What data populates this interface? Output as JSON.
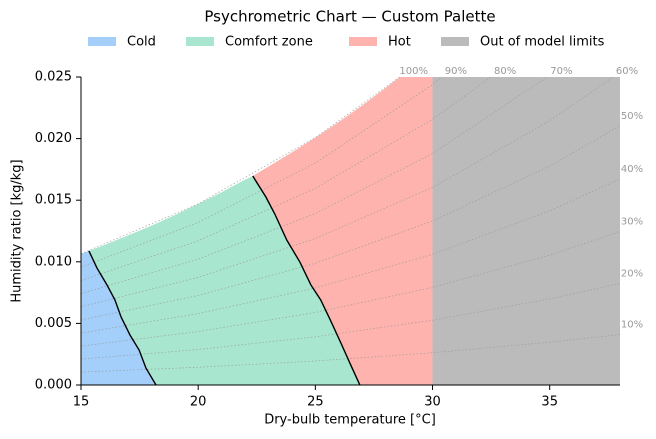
{
  "chart_data": {
    "type": "psychrometric",
    "title": "Psychrometric Chart — Custom Palette",
    "xlabel": "Dry-bulb temperature [°C]",
    "ylabel": "Humidity ratio [kg/kg]",
    "xlim": [
      15,
      38
    ],
    "ylim": [
      0,
      0.025
    ],
    "xticks": [
      15,
      20,
      25,
      30,
      35
    ],
    "yticks": [
      {
        "value": 0,
        "label": "0.000"
      },
      {
        "value": 0.005,
        "label": "0.005"
      },
      {
        "value": 0.01,
        "label": "0.010"
      },
      {
        "value": 0.015,
        "label": "0.015"
      },
      {
        "value": 0.02,
        "label": "0.020"
      },
      {
        "value": 0.025,
        "label": "0.025"
      }
    ],
    "legend": "top",
    "series": [
      {
        "name": "Cold",
        "color": "#a3cffa",
        "x": [
          15,
          15,
          15.34,
          15.68,
          16.11,
          16.45,
          16.71,
          17.09,
          17.48,
          17.77,
          18.2
        ],
        "y": [
          0,
          0.01065,
          0.01088,
          0.0095,
          0.00812,
          0.0069,
          0.00552,
          0.00406,
          0.00284,
          0.00138,
          0
        ]
      },
      {
        "name": "Comfort zone",
        "color": "#a8e6cf",
        "x": [
          15.34,
          16,
          17,
          18,
          19,
          20,
          21,
          22,
          22.33,
          22.89,
          23.27,
          23.78,
          24.34,
          24.81,
          25.23,
          25.66,
          26.09,
          26.47,
          26.9,
          18.2,
          17.77,
          17.48,
          17.09,
          16.71,
          16.45,
          16.11,
          15.68
        ],
        "y": [
          0.01088,
          0.01136,
          0.01213,
          0.01293,
          0.01379,
          0.0147,
          0.01565,
          0.01667,
          0.01696,
          0.01526,
          0.01388,
          0.01177,
          0.00998,
          0.00812,
          0.0069,
          0.00519,
          0.00341,
          0.00179,
          0,
          0,
          0.00138,
          0.00284,
          0.00406,
          0.00552,
          0.0069,
          0.00812,
          0.0095
        ]
      },
      {
        "name": "Hot",
        "color": "#ffb3ae",
        "x": [
          22.33,
          23,
          24,
          25,
          26,
          27,
          28,
          28.6,
          30,
          30,
          26.9,
          26.47,
          26.09,
          25.66,
          25.23,
          24.81,
          24.34,
          23.78,
          23.27,
          22.89
        ],
        "y": [
          0.01696,
          0.01774,
          0.01888,
          0.02008,
          0.02135,
          0.0227,
          0.02412,
          0.025,
          0.025,
          0,
          0,
          0.00179,
          0.00341,
          0.00519,
          0.0069,
          0.00812,
          0.00998,
          0.01177,
          0.01388,
          0.01526
        ]
      },
      {
        "name": "Out of model limits",
        "color": "#bbbbbb",
        "x": [
          30,
          38,
          38,
          30
        ],
        "y": [
          0,
          0,
          0.025,
          0.025
        ]
      }
    ],
    "boundaries": [
      {
        "x": [
          15.34,
          15.68,
          16.11,
          16.45,
          16.71,
          17.09,
          17.48,
          17.77,
          18.2
        ],
        "y": [
          0.01088,
          0.0095,
          0.00812,
          0.0069,
          0.00552,
          0.00406,
          0.00284,
          0.00138,
          0
        ]
      },
      {
        "x": [
          22.33,
          22.89,
          23.27,
          23.78,
          24.34,
          24.81,
          25.23,
          25.66,
          26.09,
          26.47,
          26.9
        ],
        "y": [
          0.01696,
          0.01526,
          0.01388,
          0.01177,
          0.00998,
          0.00812,
          0.0069,
          0.00519,
          0.00341,
          0.00179,
          0
        ]
      }
    ],
    "rh_lines": [
      {
        "label": "10%",
        "x": [
          15,
          20,
          25,
          30,
          35,
          38
        ],
        "y": [
          0.001049,
          0.001439,
          0.00195,
          0.002617,
          0.003474,
          0.004096
        ]
      },
      {
        "label": "20%",
        "x": [
          15,
          20,
          25,
          30,
          35,
          38
        ],
        "y": [
          0.002101,
          0.002884,
          0.003915,
          0.005258,
          0.006988,
          0.008248
        ]
      },
      {
        "label": "30%",
        "x": [
          15,
          20,
          25,
          30,
          35,
          38
        ],
        "y": [
          0.003157,
          0.004338,
          0.005891,
          0.007921,
          0.010543,
          0.012456
        ]
      },
      {
        "label": "40%",
        "x": [
          15,
          20,
          25,
          30,
          35,
          38
        ],
        "y": [
          0.004216,
          0.005797,
          0.00788,
          0.010604,
          0.014136,
          0.016721
        ]
      },
      {
        "label": "50%",
        "x": [
          15,
          20,
          25,
          30,
          35,
          38
        ],
        "y": [
          0.005279,
          0.007265,
          0.00988,
          0.01331,
          0.01777,
          0.021037
        ]
      },
      {
        "label": "60%",
        "x": [
          15,
          20,
          25,
          30,
          35,
          37.7
        ],
        "y": [
          0.006345,
          0.008736,
          0.011894,
          0.01604,
          0.021443,
          0.025
        ]
      },
      {
        "label": "70%",
        "x": [
          15,
          20,
          25,
          30,
          34.9
        ],
        "y": [
          0.007415,
          0.010215,
          0.01392,
          0.018793,
          0.025
        ]
      },
      {
        "label": "80%",
        "x": [
          15,
          20,
          25,
          30,
          32.5
        ],
        "y": [
          0.008486,
          0.011701,
          0.015963,
          0.021569,
          0.025
        ]
      },
      {
        "label": "90%",
        "x": [
          15,
          20,
          25,
          30,
          30.4
        ],
        "y": [
          0.009566,
          0.013196,
          0.018012,
          0.02438,
          0.025
        ]
      },
      {
        "label": "100%",
        "x": [
          15,
          20,
          25,
          28.6
        ],
        "y": [
          0.01065,
          0.0147,
          0.02008,
          0.025
        ]
      }
    ]
  }
}
